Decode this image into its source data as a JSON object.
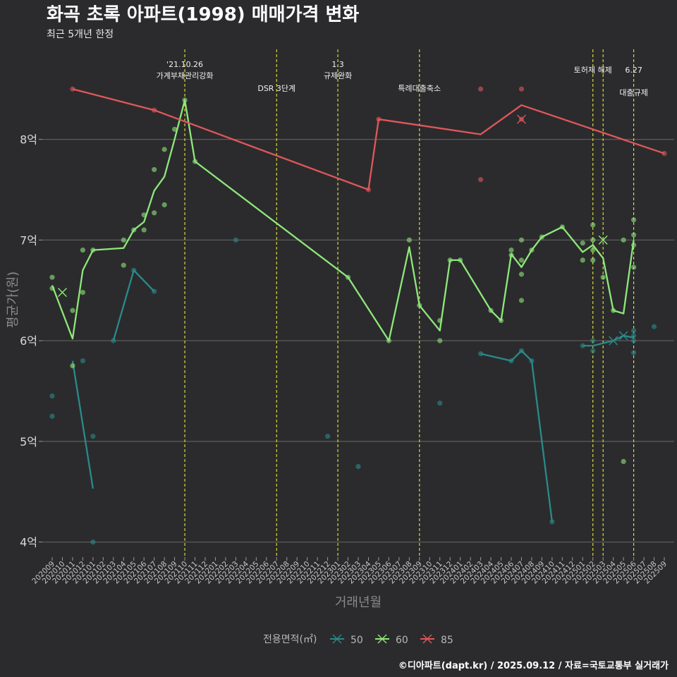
{
  "chart_data": {
    "type": "line",
    "title": "화곡 초록 아파트(1998) 매매가격 변화",
    "subtitle": "최근 5개년 한정",
    "xlabel": "거래년월",
    "ylabel": "평균가(원)",
    "caption": "©디아파트(dapt.kr) / 2025.09.12 / 자료=국토교통부 실거래가",
    "ylim": [
      3.85,
      8.95
    ],
    "yticks": [
      {
        "v": 4,
        "label": "4억"
      },
      {
        "v": 5,
        "label": "5억"
      },
      {
        "v": 6,
        "label": "6억"
      },
      {
        "v": 7,
        "label": "7억"
      },
      {
        "v": 8,
        "label": "8억"
      }
    ],
    "x_start": {
      "year": 2020,
      "month": 9
    },
    "x_end": {
      "year": 2025,
      "month": 9
    },
    "x_range": [
      0,
      60
    ],
    "legend": {
      "title": "전용면적(㎡)",
      "position": "bottom",
      "items": [
        {
          "name": "50",
          "color": "#2a8a8a"
        },
        {
          "name": "60",
          "color": "#8ee87a"
        },
        {
          "name": "85",
          "color": "#e0575a"
        }
      ]
    },
    "events": [
      {
        "x": 13,
        "label1": "'21.10.26",
        "label2": "가계부채관리강화",
        "row": 1
      },
      {
        "x": 22,
        "label1": "",
        "label2": "DSR 3단계",
        "row": 3
      },
      {
        "x": 28,
        "label1": "1.3",
        "label2": "규제완화",
        "row": 1
      },
      {
        "x": 36,
        "label1": "",
        "label2": "특례대출축소",
        "row": 3
      },
      {
        "x": 53,
        "label1": "토허제 해제",
        "label2": "",
        "row": 2
      },
      {
        "x": 54,
        "label1": "",
        "label2": "",
        "row": 0
      },
      {
        "x": 57,
        "label1": "6.27",
        "label2": "대출규제",
        "row": 2
      }
    ],
    "series": [
      {
        "name": "50",
        "color": "#2a8a8a",
        "line": [
          [
            2,
            5.8
          ],
          [
            4,
            4.53
          ],
          null,
          [
            6,
            6.0
          ],
          [
            8,
            6.7
          ],
          [
            10,
            6.49
          ],
          null,
          [
            42,
            5.87
          ],
          [
            45,
            5.8
          ],
          [
            46,
            5.9
          ],
          [
            47,
            5.8
          ],
          [
            49,
            4.2
          ],
          null,
          [
            52,
            5.95
          ],
          [
            53,
            5.95
          ],
          [
            55,
            6.0
          ],
          [
            56,
            6.05
          ],
          [
            57,
            6.03
          ]
        ],
        "points": [
          [
            0,
            5.45
          ],
          [
            0,
            5.25
          ],
          [
            3,
            5.8
          ],
          [
            4,
            5.05
          ],
          [
            4,
            4.0
          ],
          [
            6,
            6.0
          ],
          [
            8,
            6.7
          ],
          [
            10,
            6.49
          ],
          [
            18,
            7.0
          ],
          [
            27,
            5.05
          ],
          [
            30,
            4.75
          ],
          [
            38,
            5.38
          ],
          [
            42,
            5.87
          ],
          [
            45,
            5.8
          ],
          [
            46,
            5.9
          ],
          [
            47,
            5.8
          ],
          [
            49,
            4.2
          ],
          [
            52,
            5.95
          ],
          [
            53,
            5.9
          ],
          [
            53,
            6.0
          ],
          [
            57,
            6.1
          ],
          [
            57,
            6.05
          ],
          [
            57,
            6.0
          ],
          [
            57,
            5.88
          ],
          [
            59,
            6.14
          ]
        ],
        "cross": [
          [
            55,
            6.0
          ],
          [
            56,
            6.05
          ]
        ]
      },
      {
        "name": "60",
        "color": "#8ee87a",
        "line": [
          [
            0,
            6.55
          ],
          [
            2,
            6.02
          ],
          [
            3,
            6.7
          ],
          [
            4,
            6.9
          ],
          [
            7,
            6.92
          ],
          [
            8,
            7.1
          ],
          [
            9,
            7.18
          ],
          [
            10,
            7.49
          ],
          [
            11,
            7.63
          ],
          [
            12,
            8.0
          ],
          [
            13,
            8.39
          ],
          [
            14,
            7.78
          ],
          [
            29,
            6.63
          ],
          [
            33,
            6.0
          ],
          [
            35,
            6.93
          ],
          [
            36,
            6.35
          ],
          [
            38,
            6.1
          ],
          [
            39,
            6.8
          ],
          [
            40,
            6.8
          ],
          [
            43,
            6.3
          ],
          [
            44,
            6.2
          ],
          [
            45,
            6.86
          ],
          [
            46,
            6.73
          ],
          [
            47,
            6.9
          ],
          [
            48,
            7.03
          ],
          [
            50,
            7.13
          ],
          [
            52,
            6.88
          ],
          [
            53,
            6.95
          ],
          [
            54,
            6.82
          ],
          [
            55,
            6.3
          ],
          [
            56,
            6.27
          ],
          [
            57,
            7.0
          ]
        ],
        "points": [
          [
            0,
            6.63
          ],
          [
            0,
            6.52
          ],
          [
            2,
            6.3
          ],
          [
            2,
            5.75
          ],
          [
            3,
            6.9
          ],
          [
            3,
            6.48
          ],
          [
            4,
            6.9
          ],
          [
            7,
            6.75
          ],
          [
            7,
            7.0
          ],
          [
            8,
            7.1
          ],
          [
            9,
            7.25
          ],
          [
            9,
            7.1
          ],
          [
            10,
            7.7
          ],
          [
            10,
            7.27
          ],
          [
            11,
            7.35
          ],
          [
            11,
            7.9
          ],
          [
            12,
            8.1
          ],
          [
            13,
            8.39
          ],
          [
            14,
            7.78
          ],
          [
            29,
            6.63
          ],
          [
            33,
            6.0
          ],
          [
            35,
            7.0
          ],
          [
            36,
            6.35
          ],
          [
            38,
            6.2
          ],
          [
            38,
            6.0
          ],
          [
            39,
            6.8
          ],
          [
            40,
            6.8
          ],
          [
            43,
            6.3
          ],
          [
            44,
            6.2
          ],
          [
            45,
            6.9
          ],
          [
            45,
            6.85
          ],
          [
            46,
            7.0
          ],
          [
            46,
            6.8
          ],
          [
            46,
            6.66
          ],
          [
            46,
            6.4
          ],
          [
            47,
            6.9
          ],
          [
            48,
            7.03
          ],
          [
            50,
            7.13
          ],
          [
            52,
            6.97
          ],
          [
            52,
            6.8
          ],
          [
            53,
            7.15
          ],
          [
            53,
            7.0
          ],
          [
            53,
            6.9
          ],
          [
            53,
            6.8
          ],
          [
            54,
            6.63
          ],
          [
            55,
            6.3
          ],
          [
            56,
            7.0
          ],
          [
            56,
            4.8
          ],
          [
            57,
            7.2
          ],
          [
            57,
            7.05
          ],
          [
            57,
            6.95
          ],
          [
            57,
            6.73
          ]
        ],
        "cross": [
          [
            1,
            6.48
          ],
          [
            54,
            7.0
          ]
        ]
      },
      {
        "name": "85",
        "color": "#e0575a",
        "line": [
          [
            2,
            8.5
          ],
          [
            10,
            8.29
          ],
          [
            31,
            7.5
          ],
          [
            32,
            8.2
          ],
          [
            42,
            8.05
          ],
          [
            46,
            8.34
          ],
          [
            60,
            7.86
          ]
        ],
        "points": [
          [
            2,
            8.5
          ],
          [
            10,
            8.29
          ],
          [
            31,
            7.5
          ],
          [
            32,
            8.2
          ],
          [
            42,
            8.5
          ],
          [
            42,
            7.6
          ],
          [
            46,
            8.5
          ],
          [
            46,
            8.2
          ],
          [
            60,
            7.86
          ]
        ],
        "cross": [
          [
            46,
            8.2
          ]
        ]
      }
    ]
  }
}
